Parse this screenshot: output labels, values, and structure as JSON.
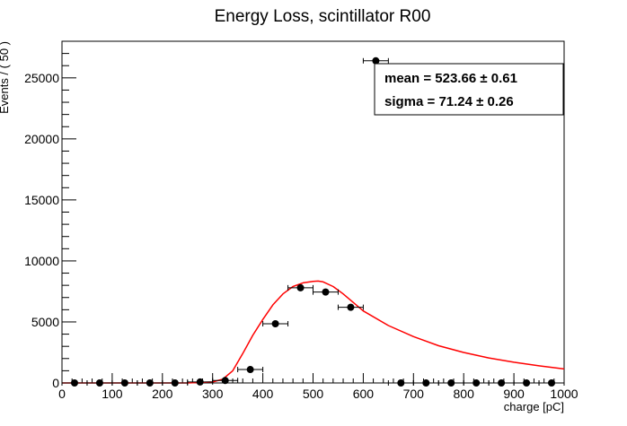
{
  "chart_data": {
    "type": "scatter",
    "title": "Energy Loss, scintillator R00",
    "xlabel": "charge [pC]",
    "ylabel": "Events / ( 50 )",
    "xlim": [
      0,
      1000
    ],
    "ylim": [
      0,
      28000
    ],
    "x_ticks": [
      0,
      100,
      200,
      300,
      400,
      500,
      600,
      700,
      800,
      900,
      1000
    ],
    "y_ticks": [
      0,
      5000,
      10000,
      15000,
      20000,
      25000
    ],
    "grid": false,
    "legend": "none",
    "series": [
      {
        "kind": "points_with_xerr",
        "color": "#000000",
        "x_half_width": 25,
        "points": [
          {
            "x": 25,
            "y": 0
          },
          {
            "x": 75,
            "y": 0
          },
          {
            "x": 125,
            "y": 0
          },
          {
            "x": 175,
            "y": 0
          },
          {
            "x": 225,
            "y": 0
          },
          {
            "x": 275,
            "y": 80
          },
          {
            "x": 325,
            "y": 200
          },
          {
            "x": 375,
            "y": 1100
          },
          {
            "x": 425,
            "y": 4850
          },
          {
            "x": 475,
            "y": 7800
          },
          {
            "x": 525,
            "y": 7450
          },
          {
            "x": 575,
            "y": 6200
          },
          {
            "x": 625,
            "y": 26400
          },
          {
            "x": 675,
            "y": 0
          },
          {
            "x": 725,
            "y": 0
          },
          {
            "x": 775,
            "y": 0
          },
          {
            "x": 825,
            "y": 0
          },
          {
            "x": 875,
            "y": 0
          },
          {
            "x": 925,
            "y": 0
          },
          {
            "x": 975,
            "y": 0
          }
        ]
      },
      {
        "kind": "curve",
        "color": "#ff0000",
        "x": [
          0,
          100,
          200,
          250,
          300,
          320,
          340,
          360,
          380,
          400,
          420,
          440,
          460,
          480,
          500,
          510,
          520,
          540,
          560,
          580,
          600,
          650,
          700,
          750,
          800,
          850,
          900,
          950,
          1000
        ],
        "y": [
          0,
          0,
          0,
          0,
          80,
          300,
          1000,
          2400,
          3900,
          5200,
          6400,
          7300,
          7900,
          8200,
          8320,
          8350,
          8280,
          7900,
          7300,
          6600,
          5900,
          4700,
          3800,
          3050,
          2500,
          2050,
          1700,
          1400,
          1150
        ]
      }
    ]
  },
  "stats": [
    {
      "label": "mean =",
      "value": "523.66",
      "pm": "±",
      "error": "0.61"
    },
    {
      "label": "sigma =",
      "value": "71.24",
      "pm": "±",
      "error": "0.26"
    }
  ]
}
